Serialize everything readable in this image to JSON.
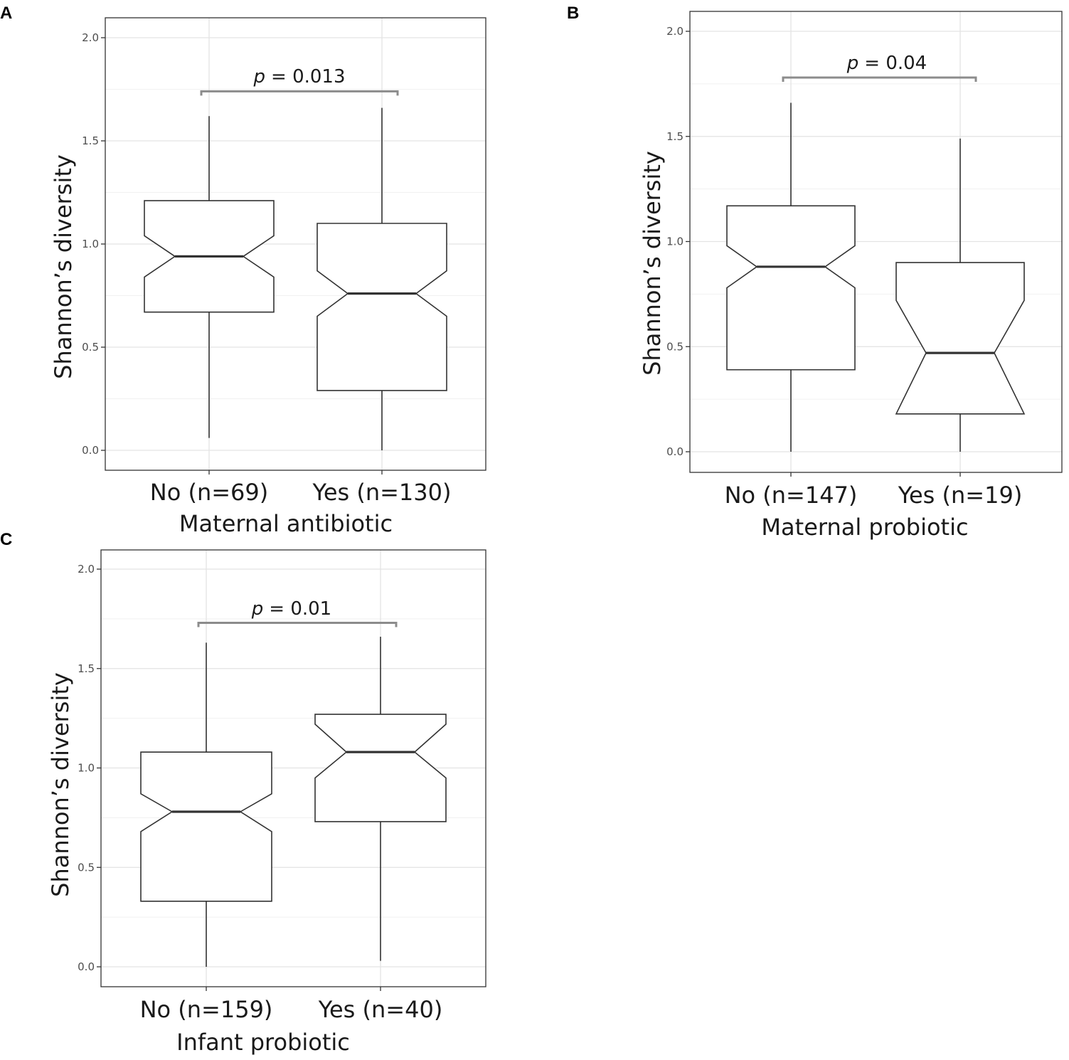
{
  "figure": {
    "panels": [
      {
        "letter": "A",
        "ylabel": "Shannon’s diversity",
        "xlabel": "Maternal antibiotic",
        "p_prefix": "p",
        "p_value": "= 0.013"
      },
      {
        "letter": "B",
        "ylabel": "Shannon’s diversity",
        "xlabel": "Maternal probiotic",
        "p_prefix": "p",
        "p_value": "= 0.04"
      },
      {
        "letter": "C",
        "ylabel": "Shannon’s diversity",
        "xlabel": "Infant probiotic",
        "p_prefix": "p",
        "p_value": "= 0.01"
      }
    ]
  },
  "chart_data": [
    {
      "type": "boxplot",
      "panel": "A",
      "notched": true,
      "xlabel": "Maternal antibiotic",
      "ylabel": "Shannon’s diversity",
      "ylim": [
        0,
        2.1
      ],
      "yticks": [
        "0.0",
        "0.5",
        "1.0",
        "1.5",
        "2.0"
      ],
      "grid": true,
      "categories": [
        "No (n=69)",
        "Yes (n=130)"
      ],
      "boxes": [
        {
          "min": 0.06,
          "q1": 0.67,
          "median": 0.94,
          "q3": 1.21,
          "max": 1.62,
          "notch_low": 0.84,
          "notch_high": 1.04
        },
        {
          "min": 0.0,
          "q1": 0.29,
          "median": 0.76,
          "q3": 1.1,
          "max": 1.66,
          "notch_low": 0.65,
          "notch_high": 0.87
        }
      ],
      "annotation": {
        "text": "p = 0.013",
        "y": 1.74
      }
    },
    {
      "type": "boxplot",
      "panel": "B",
      "notched": true,
      "xlabel": "Maternal probiotic",
      "ylabel": "Shannon’s diversity",
      "ylim": [
        0,
        2.1
      ],
      "yticks": [
        "0.0",
        "0.5",
        "1.0",
        "1.5",
        "2.0"
      ],
      "grid": true,
      "categories": [
        "No (n=147)",
        "Yes (n=19)"
      ],
      "boxes": [
        {
          "min": 0.0,
          "q1": 0.39,
          "median": 0.88,
          "q3": 1.17,
          "max": 1.66,
          "notch_low": 0.78,
          "notch_high": 0.98
        },
        {
          "min": 0.0,
          "q1": 0.18,
          "median": 0.47,
          "q3": 0.9,
          "max": 1.49,
          "notch_low": 0.18,
          "notch_high": 0.72
        }
      ],
      "annotation": {
        "text": "p = 0.04",
        "y": 1.78
      }
    },
    {
      "type": "boxplot",
      "panel": "C",
      "notched": true,
      "xlabel": "Infant probiotic",
      "ylabel": "Shannon’s diversity",
      "ylim": [
        0,
        2.1
      ],
      "yticks": [
        "0.0",
        "0.5",
        "1.0",
        "1.5",
        "2.0"
      ],
      "grid": true,
      "categories": [
        "No (n=159)",
        "Yes (n=40)"
      ],
      "boxes": [
        {
          "min": 0.0,
          "q1": 0.33,
          "median": 0.78,
          "q3": 1.08,
          "max": 1.63,
          "notch_low": 0.68,
          "notch_high": 0.87
        },
        {
          "min": 0.03,
          "q1": 0.73,
          "median": 1.08,
          "q3": 1.27,
          "max": 1.66,
          "notch_low": 0.95,
          "notch_high": 1.22
        }
      ],
      "annotation": {
        "text": "p = 0.01",
        "y": 1.73
      }
    }
  ]
}
